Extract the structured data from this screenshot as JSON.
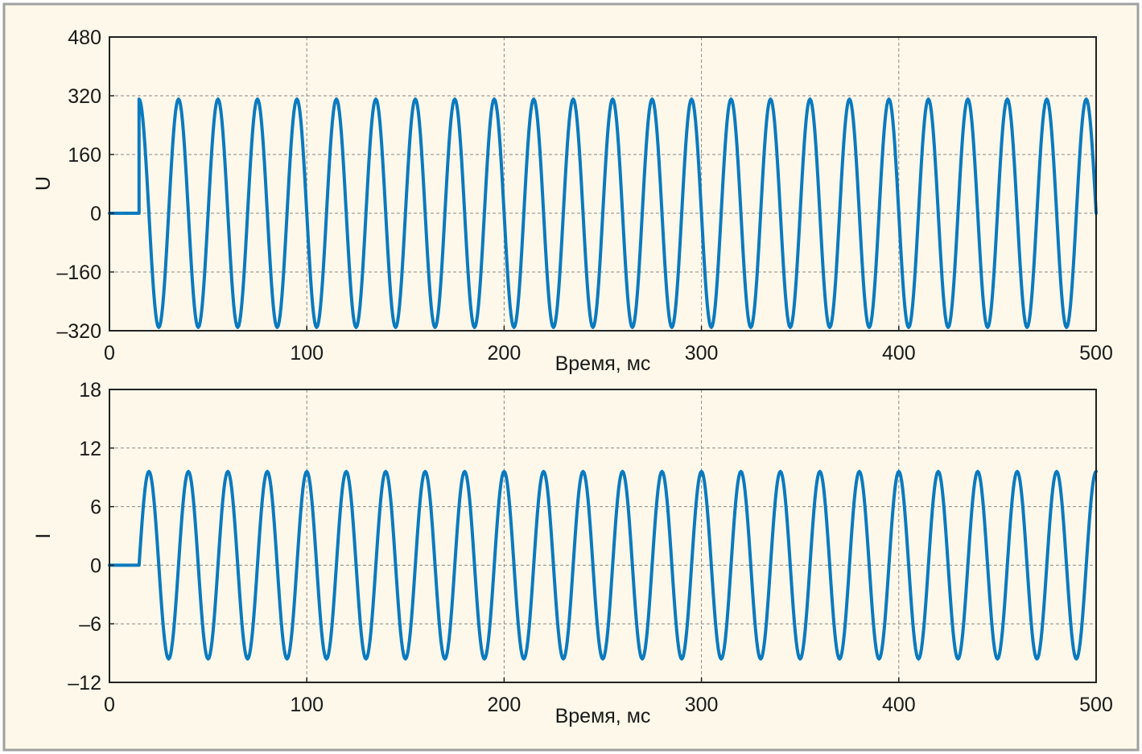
{
  "colors": {
    "background": "#fdf8e9",
    "border": "#a0a0a0",
    "line": "#0a7abf",
    "grid": "#8a8a8a"
  },
  "chart_data": [
    {
      "type": "line",
      "title": "",
      "xlabel": "Время, мс",
      "ylabel": "U",
      "xlim": [
        0,
        500
      ],
      "ylim": [
        -320,
        480
      ],
      "xticks": [
        "0",
        "100",
        "200",
        "300",
        "400",
        "500"
      ],
      "yticks": [
        "480",
        "320",
        "160",
        "0",
        "–160",
        "–320"
      ],
      "xtick_values": [
        0,
        100,
        200,
        300,
        400,
        500
      ],
      "ytick_values": [
        480,
        320,
        160,
        0,
        -160,
        -320
      ],
      "grid": true,
      "series": [
        {
          "signal": "sine",
          "amplitude": 311,
          "frequency_hz": 50,
          "phase_deg": 90,
          "start_ms": 15,
          "x_step_ms": 0.5
        }
      ]
    },
    {
      "type": "line",
      "title": "",
      "xlabel": "Время, мс",
      "ylabel": "I",
      "xlim": [
        0,
        500
      ],
      "ylim": [
        -12,
        18
      ],
      "xticks": [
        "0",
        "100",
        "200",
        "300",
        "400",
        "500"
      ],
      "yticks": [
        "18",
        "12",
        "6",
        "0",
        "–6",
        "–12"
      ],
      "xtick_values": [
        0,
        100,
        200,
        300,
        400,
        500
      ],
      "ytick_values": [
        18,
        12,
        6,
        0,
        -6,
        -12
      ],
      "grid": true,
      "series": [
        {
          "signal": "sine",
          "amplitude": 9.6,
          "frequency_hz": 50,
          "phase_deg": 0,
          "start_ms": 15,
          "x_step_ms": 0.5
        }
      ]
    }
  ]
}
